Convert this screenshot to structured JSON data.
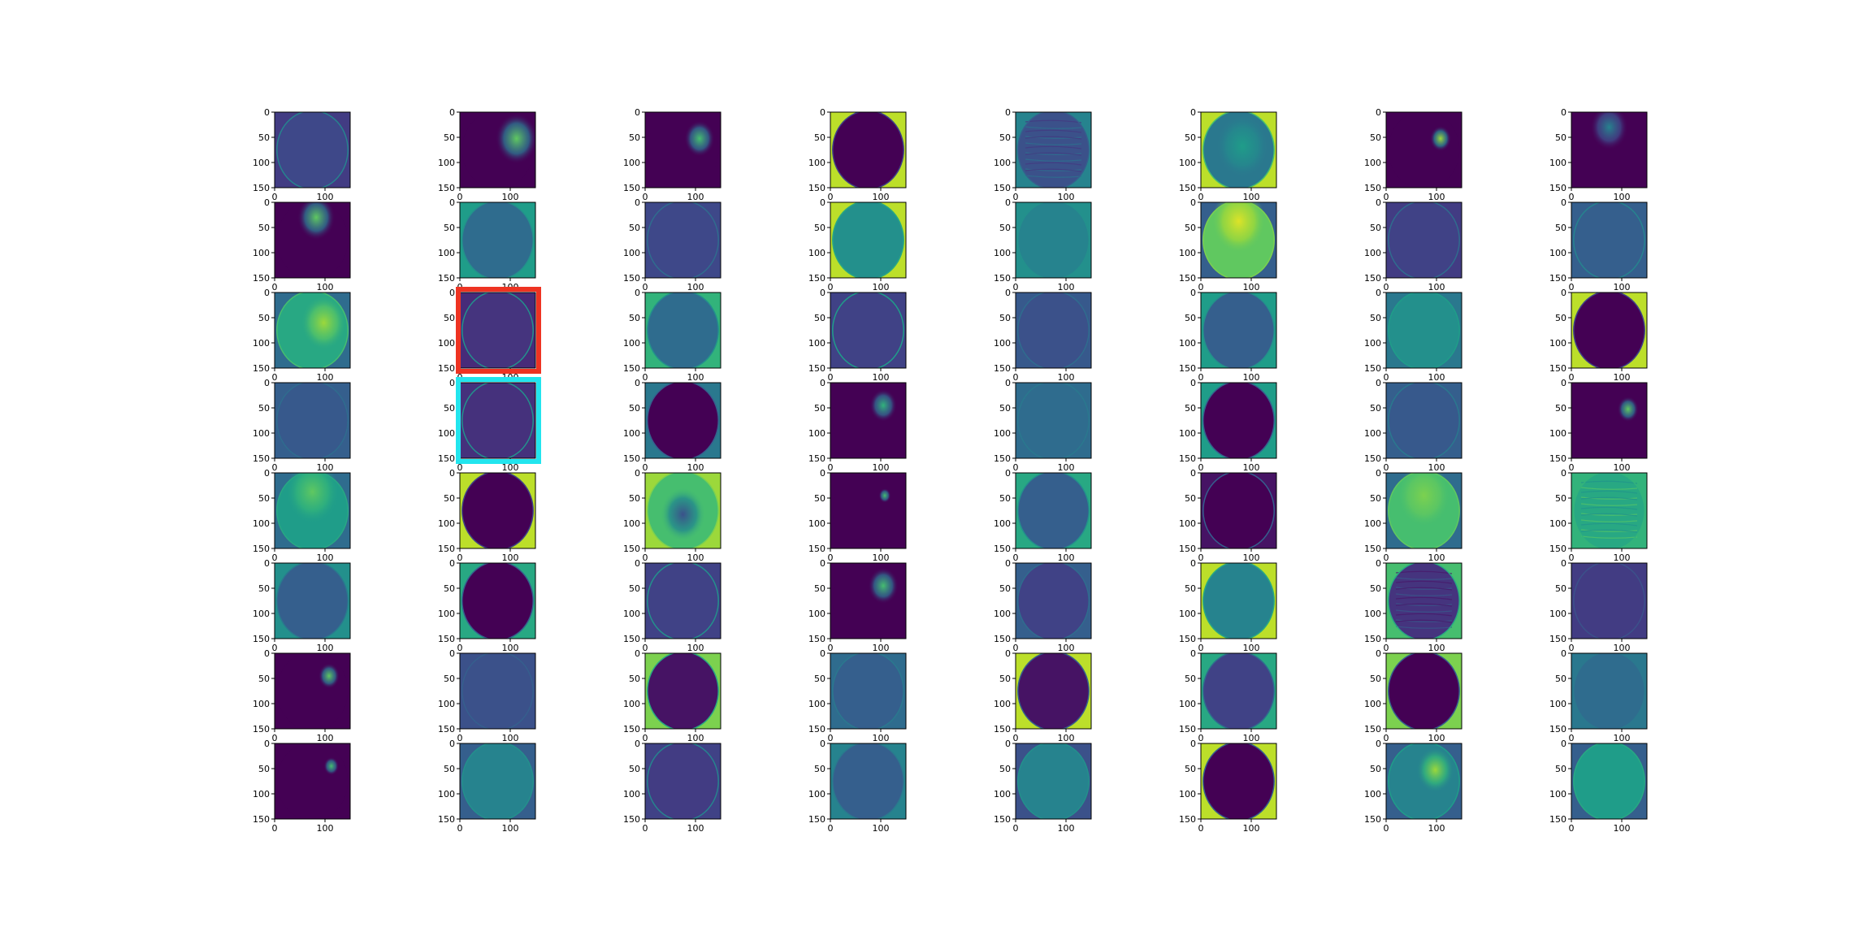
{
  "chart_data": {
    "type": "heatmap",
    "layout": {
      "rows": 8,
      "cols": 8
    },
    "image_size": [
      150,
      150
    ],
    "colormap": "viridis",
    "colormap_stops": [
      "#440154",
      "#482878",
      "#3e4989",
      "#31688e",
      "#26828e",
      "#1f9e89",
      "#35b779",
      "#6ece58",
      "#b5de2b",
      "#fde725"
    ],
    "x_ticks": [
      "0",
      "100"
    ],
    "y_ticks": [
      "0",
      "50",
      "100",
      "150"
    ],
    "highlight_colors": {
      "red": "#ee3322",
      "cyan": "#22e5ee"
    },
    "panels": [
      {
        "type": "uniform",
        "bg": 0.18,
        "disk": 0.22,
        "rim": 0.45
      },
      {
        "type": "blob",
        "bg": 0.0,
        "disk": 0.0,
        "blob": {
          "cx": 0.75,
          "cy": 0.35,
          "r": 0.28,
          "v": 0.75
        }
      },
      {
        "type": "blob",
        "bg": 0.0,
        "disk": 0.0,
        "blob": {
          "cx": 0.72,
          "cy": 0.35,
          "r": 0.2,
          "v": 0.7
        }
      },
      {
        "type": "corners",
        "bg": 0.9,
        "disk": 0.0,
        "rim": 0.2
      },
      {
        "type": "texture",
        "bg": 0.45,
        "disk": 0.25,
        "rim": 0.3
      },
      {
        "type": "corners",
        "bg": 0.9,
        "disk": 0.4,
        "rim": 0.7,
        "blob": {
          "cx": 0.55,
          "cy": 0.45,
          "r": 0.35,
          "v": 0.55
        }
      },
      {
        "type": "blob",
        "bg": 0.0,
        "disk": 0.0,
        "blob": {
          "cx": 0.72,
          "cy": 0.35,
          "r": 0.14,
          "v": 0.85
        }
      },
      {
        "type": "blob",
        "bg": 0.0,
        "disk": 0.0,
        "blob": {
          "cx": 0.5,
          "cy": 0.2,
          "r": 0.25,
          "v": 0.45
        }
      },
      {
        "type": "blob",
        "bg": 0.0,
        "disk": 0.0,
        "blob": {
          "cx": 0.55,
          "cy": 0.2,
          "r": 0.25,
          "v": 0.75
        }
      },
      {
        "type": "uniform",
        "bg": 0.55,
        "disk": 0.35,
        "rim": 0.5
      },
      {
        "type": "uniform",
        "bg": 0.22,
        "disk": 0.22,
        "rim": 0.35
      },
      {
        "type": "corners",
        "bg": 0.9,
        "disk": 0.5,
        "rim": 0.6
      },
      {
        "type": "uniform",
        "bg": 0.5,
        "disk": 0.45,
        "rim": 0.5
      },
      {
        "type": "corners",
        "bg": 0.3,
        "disk": 0.75,
        "rim": 0.8,
        "blob": {
          "cx": 0.5,
          "cy": 0.25,
          "r": 0.35,
          "v": 0.95
        }
      },
      {
        "type": "uniform",
        "bg": 0.18,
        "disk": 0.2,
        "rim": 0.35
      },
      {
        "type": "uniform",
        "bg": 0.3,
        "disk": 0.3,
        "rim": 0.45
      },
      {
        "type": "corners",
        "bg": 0.35,
        "disk": 0.6,
        "rim": 0.7,
        "blob": {
          "cx": 0.65,
          "cy": 0.4,
          "r": 0.3,
          "v": 0.85
        }
      },
      {
        "type": "uniform",
        "bg": 0.12,
        "disk": 0.15,
        "rim": 0.5,
        "highlight": "red"
      },
      {
        "type": "corners",
        "bg": 0.65,
        "disk": 0.35,
        "rim": 0.5
      },
      {
        "type": "uniform",
        "bg": 0.2,
        "disk": 0.2,
        "rim": 0.55
      },
      {
        "type": "uniform",
        "bg": 0.28,
        "disk": 0.25,
        "rim": 0.35
      },
      {
        "type": "corners",
        "bg": 0.55,
        "disk": 0.3,
        "rim": 0.5
      },
      {
        "type": "uniform",
        "bg": 0.4,
        "disk": 0.5,
        "rim": 0.55
      },
      {
        "type": "corners",
        "bg": 0.9,
        "disk": 0.0,
        "rim": 0.2
      },
      {
        "type": "uniform",
        "bg": 0.3,
        "disk": 0.28,
        "rim": 0.35
      },
      {
        "type": "uniform",
        "bg": 0.14,
        "disk": 0.14,
        "rim": 0.5,
        "highlight": "cyan"
      },
      {
        "type": "corners",
        "bg": 0.4,
        "disk": 0.0,
        "rim": 0.3
      },
      {
        "type": "blob",
        "bg": 0.0,
        "disk": 0.0,
        "blob": {
          "cx": 0.7,
          "cy": 0.3,
          "r": 0.18,
          "v": 0.65
        }
      },
      {
        "type": "uniform",
        "bg": 0.35,
        "disk": 0.35,
        "rim": 0.4
      },
      {
        "type": "corners",
        "bg": 0.55,
        "disk": 0.0,
        "rim": 0.3
      },
      {
        "type": "uniform",
        "bg": 0.3,
        "disk": 0.28,
        "rim": 0.4
      },
      {
        "type": "blob",
        "bg": 0.0,
        "disk": 0.0,
        "blob": {
          "cx": 0.75,
          "cy": 0.35,
          "r": 0.14,
          "v": 0.75
        }
      },
      {
        "type": "corners",
        "bg": 0.35,
        "disk": 0.55,
        "rim": 0.6,
        "blob": {
          "cx": 0.5,
          "cy": 0.25,
          "r": 0.35,
          "v": 0.75
        }
      },
      {
        "type": "corners",
        "bg": 0.9,
        "disk": 0.0,
        "rim": 0.2
      },
      {
        "type": "corners",
        "bg": 0.85,
        "disk": 0.7,
        "rim": 0.8,
        "blob": {
          "cx": 0.5,
          "cy": 0.55,
          "r": 0.3,
          "v": 0.25
        }
      },
      {
        "type": "blob",
        "bg": 0.0,
        "disk": 0.0,
        "blob": {
          "cx": 0.72,
          "cy": 0.3,
          "r": 0.08,
          "v": 0.7
        }
      },
      {
        "type": "corners",
        "bg": 0.6,
        "disk": 0.3,
        "rim": 0.5
      },
      {
        "type": "corners",
        "bg": 0.05,
        "disk": 0.0,
        "rim": 0.3
      },
      {
        "type": "corners",
        "bg": 0.35,
        "disk": 0.7,
        "rim": 0.75,
        "blob": {
          "cx": 0.5,
          "cy": 0.3,
          "r": 0.35,
          "v": 0.8
        }
      },
      {
        "type": "texture",
        "bg": 0.65,
        "disk": 0.6,
        "rim": 0.65
      },
      {
        "type": "uniform",
        "bg": 0.5,
        "disk": 0.3,
        "rim": 0.4
      },
      {
        "type": "corners",
        "bg": 0.6,
        "disk": 0.0,
        "rim": 0.3
      },
      {
        "type": "uniform",
        "bg": 0.2,
        "disk": 0.2,
        "rim": 0.5
      },
      {
        "type": "blob",
        "bg": 0.0,
        "disk": 0.0,
        "blob": {
          "cx": 0.7,
          "cy": 0.3,
          "r": 0.2,
          "v": 0.7
        }
      },
      {
        "type": "uniform",
        "bg": 0.3,
        "disk": 0.2,
        "rim": 0.35
      },
      {
        "type": "corners",
        "bg": 0.9,
        "disk": 0.45,
        "rim": 0.6
      },
      {
        "type": "texture",
        "bg": 0.7,
        "disk": 0.15,
        "rim": 0.6
      },
      {
        "type": "uniform",
        "bg": 0.18,
        "disk": 0.18,
        "rim": 0.25
      },
      {
        "type": "blob",
        "bg": 0.0,
        "disk": 0.0,
        "blob": {
          "cx": 0.72,
          "cy": 0.3,
          "r": 0.14,
          "v": 0.75
        }
      },
      {
        "type": "uniform",
        "bg": 0.25,
        "disk": 0.25,
        "rim": 0.3
      },
      {
        "type": "corners",
        "bg": 0.8,
        "disk": 0.05,
        "rim": 0.6
      },
      {
        "type": "uniform",
        "bg": 0.35,
        "disk": 0.3,
        "rim": 0.4
      },
      {
        "type": "corners",
        "bg": 0.9,
        "disk": 0.05,
        "rim": 0.3
      },
      {
        "type": "corners",
        "bg": 0.6,
        "disk": 0.2,
        "rim": 0.35
      },
      {
        "type": "corners",
        "bg": 0.8,
        "disk": 0.0,
        "rim": 0.3
      },
      {
        "type": "uniform",
        "bg": 0.4,
        "disk": 0.35,
        "rim": 0.4
      },
      {
        "type": "blob",
        "bg": 0.0,
        "disk": 0.0,
        "blob": {
          "cx": 0.75,
          "cy": 0.3,
          "r": 0.1,
          "v": 0.7
        }
      },
      {
        "type": "corners",
        "bg": 0.3,
        "disk": 0.45,
        "rim": 0.5
      },
      {
        "type": "uniform",
        "bg": 0.2,
        "disk": 0.18,
        "rim": 0.45
      },
      {
        "type": "uniform",
        "bg": 0.45,
        "disk": 0.3,
        "rim": 0.4
      },
      {
        "type": "uniform",
        "bg": 0.25,
        "disk": 0.45,
        "rim": 0.5
      },
      {
        "type": "corners",
        "bg": 0.9,
        "disk": 0.0,
        "rim": 0.3
      },
      {
        "type": "corners",
        "bg": 0.3,
        "disk": 0.45,
        "rim": 0.55,
        "blob": {
          "cx": 0.65,
          "cy": 0.35,
          "r": 0.25,
          "v": 0.85
        }
      },
      {
        "type": "uniform",
        "bg": 0.3,
        "disk": 0.55,
        "rim": 0.6
      }
    ]
  }
}
